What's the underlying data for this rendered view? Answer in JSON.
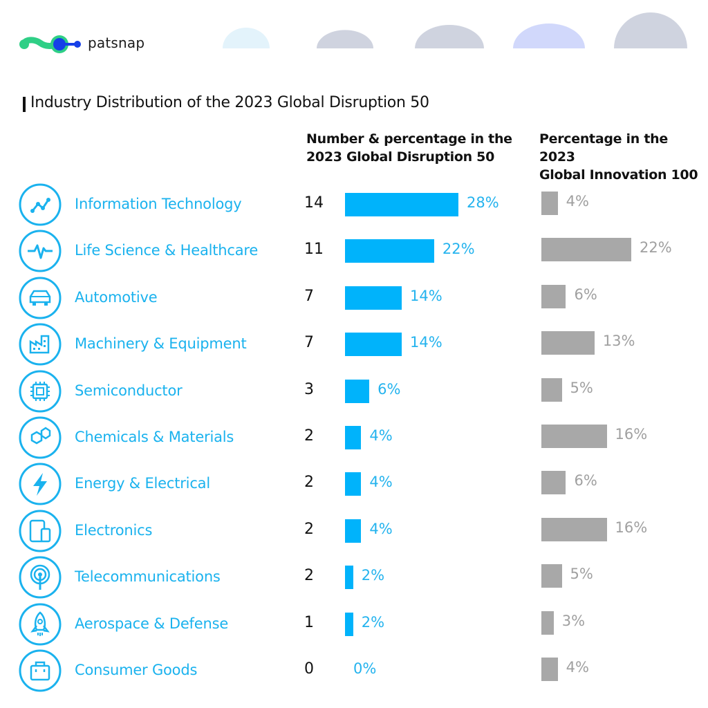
{
  "brand": {
    "name": "patsnap"
  },
  "title": "Industry Distribution of the 2023 Global Disruption 50",
  "columns": {
    "a_line1": "Number & percentage in the",
    "a_line2": "2023 Global Disruption 50",
    "b_line1": "Percentage in the 2023",
    "b_line2": "Global Innovation 100"
  },
  "colors": {
    "brand_green": "#2fcf86",
    "brand_blue": "#1640e8",
    "accent": "#1ab2ee",
    "bar_primary": "#00b3fb",
    "bar_secondary": "#a8a8a8"
  },
  "chart_data": {
    "type": "bar",
    "orientation": "horizontal",
    "categories": [
      "Information Technology",
      "Life Science & Healthcare",
      "Automotive",
      "Machinery & Equipment",
      "Semiconductor",
      "Chemicals & Materials",
      "Energy & Electrical",
      "Electronics",
      "Telecommunications",
      "Aerospace & Defense",
      "Consumer Goods"
    ],
    "icons": [
      "trend-line-icon",
      "heartbeat-icon",
      "car-icon",
      "factory-icon",
      "chip-icon",
      "molecule-icon",
      "lightning-icon",
      "devices-icon",
      "antenna-icon",
      "rocket-icon",
      "shopping-bag-icon"
    ],
    "series": [
      {
        "counts": [
          "14",
          "11",
          "7",
          "7",
          "3",
          "2",
          "2",
          "2",
          "2",
          "1",
          "0"
        ],
        "values": [
          28,
          22,
          14,
          14,
          6,
          4,
          4,
          4,
          2,
          2,
          0
        ],
        "labels": [
          "28%",
          "22%",
          "14%",
          "14%",
          "6%",
          "4%",
          "4%",
          "4%",
          "2%",
          "2%",
          "0%"
        ]
      },
      {
        "values": [
          4,
          22,
          6,
          13,
          5,
          16,
          6,
          16,
          5,
          3,
          4
        ],
        "labels": [
          "4%",
          "22%",
          "6%",
          "13%",
          "5%",
          "16%",
          "6%",
          "16%",
          "5%",
          "3%",
          "4%"
        ]
      }
    ],
    "unit": "%"
  }
}
